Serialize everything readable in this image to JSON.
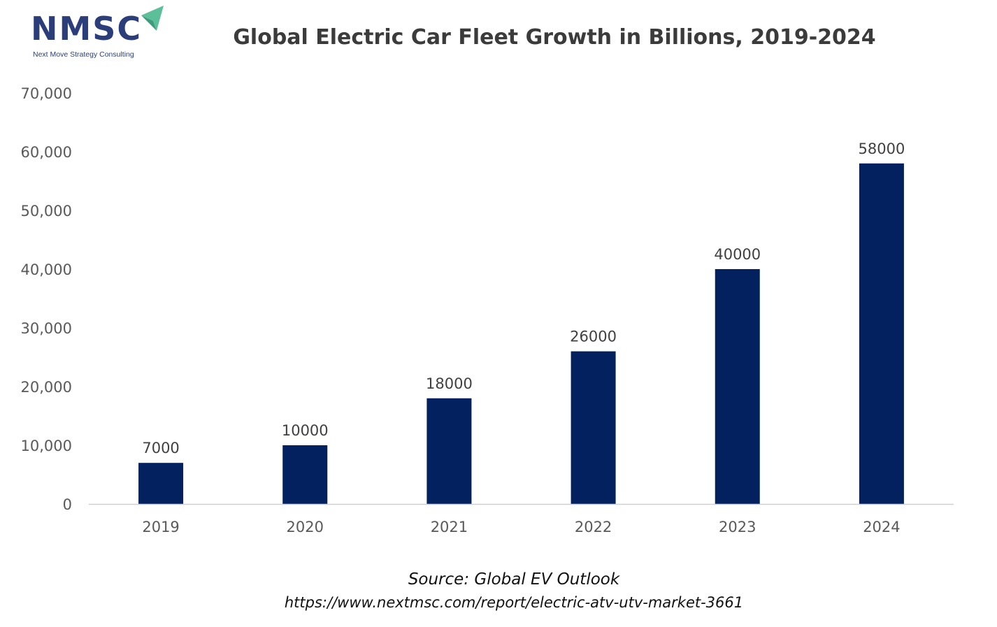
{
  "logo": {
    "text": "NMSC",
    "subtitle": "Next Move Strategy Consulting",
    "colors": {
      "text": "#2c3e7a",
      "arrow": "#5bbf9a"
    }
  },
  "chart_data": {
    "type": "bar",
    "title": "Global Electric Car Fleet Growth in Billions, 2019-2024",
    "categories": [
      "2019",
      "2020",
      "2021",
      "2022",
      "2023",
      "2024"
    ],
    "values": [
      7000,
      10000,
      18000,
      26000,
      40000,
      58000
    ],
    "value_labels": [
      "7000",
      "10000",
      "18000",
      "26000",
      "40000",
      "58000"
    ],
    "ylim": [
      0,
      70000
    ],
    "yticks": [
      0,
      10000,
      20000,
      30000,
      40000,
      50000,
      60000,
      70000
    ],
    "ytick_labels": [
      "0",
      "10,000",
      "20,000",
      "30,000",
      "40,000",
      "50,000",
      "60,000",
      "70,000"
    ],
    "xlabel": "",
    "ylabel": "",
    "grid": false,
    "legend": "none",
    "bar_color": "#03215e"
  },
  "source": {
    "line1": "Source: Global EV Outlook",
    "line2": "https://www.nextmsc.com/report/electric-atv-utv-market-3661"
  }
}
